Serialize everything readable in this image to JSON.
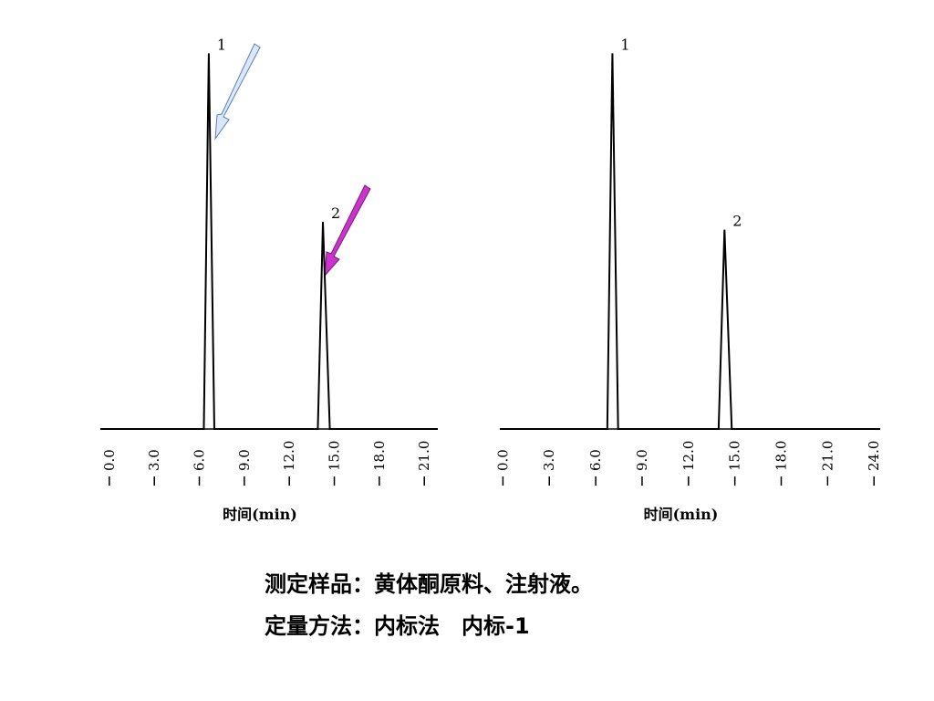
{
  "chart_data": [
    {
      "type": "line",
      "x_label": "时间(min)",
      "x": [
        -0.6,
        6.3,
        6.63,
        7.0,
        13.9,
        14.24,
        14.7,
        21.9
      ],
      "values": [
        0,
        0,
        98,
        0,
        0,
        54,
        0,
        0
      ],
      "color": "#000000",
      "xlim": [
        -0.6,
        21.9
      ],
      "ylim": [
        0,
        100
      ],
      "xticks": [
        {
          "value": 0,
          "label": "0.0"
        },
        {
          "value": 3,
          "label": "3.0"
        },
        {
          "value": 6,
          "label": "6.0"
        },
        {
          "value": 9,
          "label": "9.0"
        },
        {
          "value": 12,
          "label": "12.0"
        },
        {
          "value": 15,
          "label": "15.0"
        },
        {
          "value": 18,
          "label": "18.0"
        },
        {
          "value": 21,
          "label": "21.0"
        }
      ],
      "annotations": [
        {
          "text": "1",
          "x": 6.63,
          "y": 98
        },
        {
          "text": "2",
          "x": 14.24,
          "y": 54
        }
      ]
    },
    {
      "type": "line",
      "x_label": "时间(min)",
      "x": [
        -0.2,
        6.75,
        7.08,
        7.45,
        13.95,
        14.33,
        14.8,
        24.4
      ],
      "values": [
        0,
        0,
        98,
        0,
        0,
        52,
        0,
        0
      ],
      "color": "#000000",
      "xlim": [
        -0.2,
        24.4
      ],
      "ylim": [
        0,
        100
      ],
      "xticks": [
        {
          "value": 0,
          "label": "0.0"
        },
        {
          "value": 3,
          "label": "3.0"
        },
        {
          "value": 6,
          "label": "6.0"
        },
        {
          "value": 9,
          "label": "9.0"
        },
        {
          "value": 12,
          "label": "12.0"
        },
        {
          "value": 15,
          "label": "15.0"
        },
        {
          "value": 18,
          "label": "18.0"
        },
        {
          "value": 21,
          "label": "21.0"
        },
        {
          "value": 24,
          "label": "24.0"
        }
      ],
      "annotations": [
        {
          "text": "1",
          "x": 7.08,
          "y": 98
        },
        {
          "text": "2",
          "x": 14.33,
          "y": 52
        }
      ]
    }
  ],
  "caption": {
    "lines": [
      "测定样品：黄体酮原料、注射液。",
      "定量方法：内标法　内标-1"
    ]
  }
}
